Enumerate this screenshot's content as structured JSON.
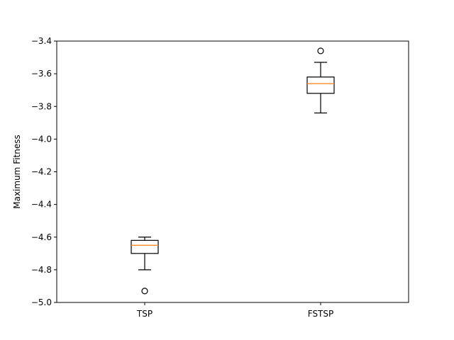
{
  "chart_data": {
    "type": "box",
    "title": "",
    "xlabel": "",
    "ylabel": "Maximum Fitness",
    "categories": [
      "TSP",
      "FSTSP"
    ],
    "ylim": [
      -5.0,
      -3.4
    ],
    "yticks": [
      -5.0,
      -4.8,
      -4.6,
      -4.4,
      -4.2,
      -4.0,
      -3.8,
      -3.6,
      -3.4
    ],
    "ytick_labels": [
      "−5.0",
      "−4.8",
      "−4.6",
      "−4.4",
      "−4.2",
      "−4.0",
      "−3.8",
      "−3.6",
      "−3.4"
    ],
    "grid": false,
    "boxes": [
      {
        "category": "TSP",
        "whisker_low": -4.8,
        "q1": -4.7,
        "median": -4.65,
        "q3": -4.62,
        "whisker_high": -4.6,
        "outliers": [
          -4.93
        ]
      },
      {
        "category": "FSTSP",
        "whisker_low": -3.84,
        "q1": -3.72,
        "median": -3.66,
        "q3": -3.62,
        "whisker_high": -3.53,
        "outliers": [
          -3.46
        ]
      }
    ],
    "colors": {
      "box": "#000000",
      "median": "#ff7f0e",
      "outlier": "#000000",
      "axes": "#000000"
    }
  }
}
